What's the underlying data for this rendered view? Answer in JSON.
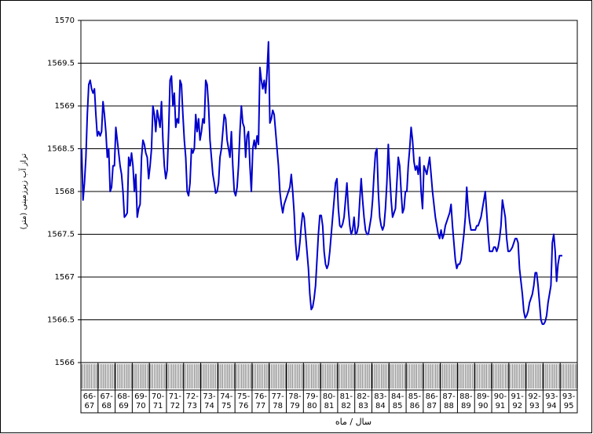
{
  "chart_data": {
    "type": "line",
    "y_label": "تراز آب زیرزمینی (متر)",
    "x_label": "سال / ماه",
    "color": "#0000cc",
    "grid": true,
    "ylim": [
      1566,
      1570
    ],
    "yticks": [
      1566,
      1566.5,
      1567,
      1567.5,
      1568,
      1568.5,
      1569,
      1569.5,
      1570
    ],
    "categories": [
      [
        "66-",
        "67"
      ],
      [
        "67-",
        "68"
      ],
      [
        "68-",
        "69"
      ],
      [
        "69-",
        "70"
      ],
      [
        "70-",
        "71"
      ],
      [
        "71-",
        "72"
      ],
      [
        "72-",
        "73"
      ],
      [
        "73-",
        "74"
      ],
      [
        "74-",
        "75"
      ],
      [
        "75-",
        "76"
      ],
      [
        "76-",
        "77"
      ],
      [
        "77-",
        "78"
      ],
      [
        "78-",
        "79"
      ],
      [
        "79-",
        "80"
      ],
      [
        "80-",
        "81"
      ],
      [
        "81-",
        "82"
      ],
      [
        "82-",
        "83"
      ],
      [
        "83-",
        "84"
      ],
      [
        "84-",
        "85"
      ],
      [
        "85-",
        "86"
      ],
      [
        "86-",
        "87"
      ],
      [
        "87-",
        "88"
      ],
      [
        "88-",
        "89"
      ],
      [
        "89-",
        "90"
      ],
      [
        "90-",
        "91"
      ],
      [
        "91-",
        "92"
      ],
      [
        "92-",
        "93"
      ],
      [
        "93-",
        "94"
      ],
      [
        "93-",
        "95"
      ]
    ],
    "values": [
      [
        1568.5,
        1567.9,
        1568.1,
        1568.4,
        1568.9,
        1569.25,
        1569.3,
        1569.2,
        1569.15,
        1569.2,
        1568.9,
        1568.65
      ],
      [
        1568.7,
        1568.65,
        1568.7,
        1569.05,
        1568.9,
        1568.7,
        1568.4,
        1568.5,
        1568.0,
        1568.05,
        1568.3,
        1568.3
      ],
      [
        1568.75,
        1568.6,
        1568.45,
        1568.3,
        1568.2,
        1568.0,
        1567.7,
        1567.72,
        1567.75,
        1568.4,
        1568.3,
        1568.45
      ],
      [
        1568.3,
        1568.0,
        1568.2,
        1567.7,
        1567.8,
        1567.85,
        1568.4,
        1568.6,
        1568.55,
        1568.45,
        1568.4,
        1568.15
      ],
      [
        1568.3,
        1568.5,
        1569.0,
        1568.9,
        1568.7,
        1568.95,
        1568.85,
        1568.75,
        1569.05,
        1568.6,
        1568.3,
        1568.15
      ],
      [
        1568.25,
        1568.7,
        1569.3,
        1569.35,
        1569.0,
        1569.15,
        1568.75,
        1568.85,
        1568.8,
        1569.3,
        1569.25,
        1568.9
      ],
      [
        1568.6,
        1568.4,
        1568.0,
        1567.95,
        1568.1,
        1568.5,
        1568.45,
        1568.5,
        1568.9,
        1568.7,
        1568.85,
        1568.6
      ],
      [
        1568.7,
        1568.85,
        1568.8,
        1569.3,
        1569.25,
        1569.0,
        1568.6,
        1568.4,
        1568.2,
        1568.1,
        1567.98,
        1568.0
      ],
      [
        1568.1,
        1568.4,
        1568.5,
        1568.7,
        1568.9,
        1568.85,
        1568.6,
        1568.5,
        1568.4,
        1568.7,
        1568.3,
        1568.0
      ],
      [
        1567.95,
        1568.05,
        1568.3,
        1568.7,
        1569.0,
        1568.8,
        1568.75,
        1568.4,
        1568.65,
        1568.7,
        1568.3,
        1568.0
      ],
      [
        1568.5,
        1568.6,
        1568.5,
        1568.65,
        1568.55,
        1569.45,
        1569.3,
        1569.2,
        1569.3,
        1569.15,
        1569.4,
        1569.75
      ],
      [
        1568.8,
        1568.85,
        1568.95,
        1568.9,
        1568.7,
        1568.5,
        1568.3,
        1568.0,
        1567.85,
        1567.75,
        1567.85,
        1567.9
      ],
      [
        1567.95,
        1568.0,
        1568.05,
        1568.2,
        1568.0,
        1567.75,
        1567.4,
        1567.2,
        1567.25,
        1567.4,
        1567.6,
        1567.75
      ],
      [
        1567.7,
        1567.5,
        1567.3,
        1567.1,
        1566.8,
        1566.62,
        1566.65,
        1566.75,
        1566.9,
        1567.2,
        1567.5,
        1567.72
      ],
      [
        1567.72,
        1567.6,
        1567.3,
        1567.15,
        1567.1,
        1567.15,
        1567.3,
        1567.5,
        1567.7,
        1567.9,
        1568.1,
        1568.15
      ],
      [
        1567.8,
        1567.6,
        1567.58,
        1567.62,
        1567.7,
        1567.9,
        1568.1,
        1567.8,
        1567.6,
        1567.5,
        1567.55,
        1567.7
      ],
      [
        1567.5,
        1567.52,
        1567.6,
        1567.9,
        1568.15,
        1567.9,
        1567.7,
        1567.55,
        1567.5,
        1567.5,
        1567.6,
        1567.7
      ],
      [
        1567.9,
        1568.2,
        1568.45,
        1568.5,
        1568.0,
        1567.7,
        1567.6,
        1567.55,
        1567.6,
        1567.8,
        1568.1,
        1568.55
      ],
      [
        1568.2,
        1567.9,
        1567.7,
        1567.75,
        1567.8,
        1568.1,
        1568.4,
        1568.3,
        1568.0,
        1567.75,
        1567.8,
        1568.0
      ],
      [
        1568.0,
        1568.3,
        1568.5,
        1568.75,
        1568.6,
        1568.35,
        1568.25,
        1568.3,
        1568.2,
        1568.4,
        1568.0,
        1567.8
      ],
      [
        1568.3,
        1568.25,
        1568.2,
        1568.3,
        1568.4,
        1568.2,
        1568.0,
        1567.85,
        1567.7,
        1567.6,
        1567.5,
        1567.45
      ],
      [
        1567.55,
        1567.45,
        1567.5,
        1567.6,
        1567.65,
        1567.7,
        1567.75,
        1567.85,
        1567.6,
        1567.4,
        1567.2,
        1567.1
      ],
      [
        1567.15,
        1567.15,
        1567.2,
        1567.35,
        1567.5,
        1567.7,
        1568.05,
        1567.8,
        1567.65,
        1567.55,
        1567.55,
        1567.55
      ],
      [
        1567.55,
        1567.6,
        1567.6,
        1567.65,
        1567.7,
        1567.8,
        1567.9,
        1568.0,
        1567.75,
        1567.5,
        1567.3,
        1567.3
      ],
      [
        1567.3,
        1567.35,
        1567.35,
        1567.3,
        1567.35,
        1567.45,
        1567.6,
        1567.9,
        1567.8,
        1567.7,
        1567.45,
        1567.3
      ],
      [
        1567.3,
        1567.32,
        1567.35,
        1567.4,
        1567.45,
        1567.45,
        1567.4,
        1567.1,
        1566.95,
        1566.8,
        1566.6,
        1566.52
      ],
      [
        1566.55,
        1566.6,
        1566.7,
        1566.75,
        1566.8,
        1566.9,
        1567.05,
        1567.05,
        1566.9,
        1566.7,
        1566.5,
        1566.45
      ],
      [
        1566.45,
        1566.48,
        1566.55,
        1566.7,
        1566.8,
        1566.9,
        1567.4,
        1567.5,
        1567.3,
        1566.95,
        1567.15,
        1567.25
      ],
      [
        1567.25,
        1567.25,
        null,
        null,
        null,
        null,
        null,
        null,
        null,
        null,
        null,
        null
      ]
    ]
  }
}
